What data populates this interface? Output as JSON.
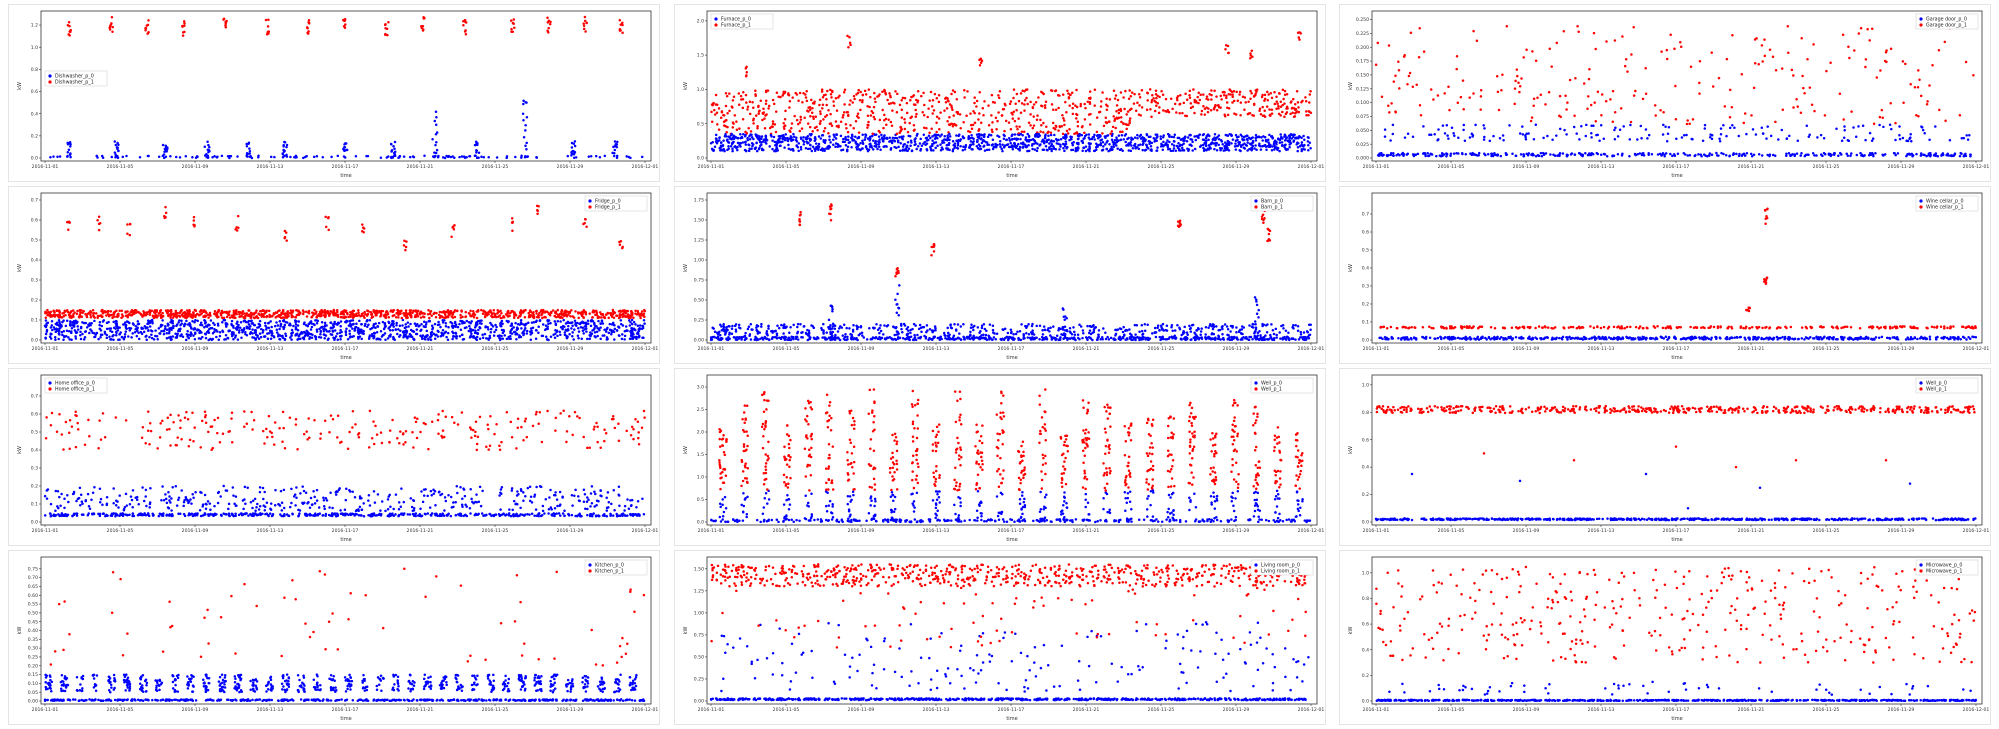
{
  "colors": {
    "series0": "#0000ff",
    "series1": "#ff0000",
    "axis": "#333333"
  },
  "chart_data": [
    {
      "type": "scatter",
      "ylabel": "kW",
      "xlabel": "time",
      "legend": "left",
      "series": [
        {
          "name": "Dishwasher_p_0"
        },
        {
          "name": "Dishwasher_p_1"
        }
      ],
      "ylim": [
        0,
        1.3
      ],
      "yticks": [
        "0.0",
        "0.2",
        "0.4",
        "0.6",
        "0.8",
        "1.0",
        "1.2"
      ],
      "xticks": [
        "2016-11-01",
        "2016-11-05",
        "2016-11-09",
        "2016-11-13",
        "2016-11-17",
        "2016-11-21",
        "2016-11-25",
        "2016-11-29",
        "2016-12-01"
      ],
      "profile": {
        "base0": 0.01,
        "jit0": 0.01,
        "n0": 120,
        "clusters0": [
          [
            0.04,
            0.15
          ],
          [
            0.12,
            0.15
          ],
          [
            0.2,
            0.12
          ],
          [
            0.27,
            0.15
          ],
          [
            0.34,
            0.15
          ],
          [
            0.4,
            0.15
          ],
          [
            0.5,
            0.15
          ],
          [
            0.58,
            0.15
          ],
          [
            0.65,
            0.45
          ],
          [
            0.72,
            0.15
          ],
          [
            0.8,
            0.6
          ],
          [
            0.88,
            0.15
          ],
          [
            0.95,
            0.15
          ]
        ],
        "clusters1": [
          [
            0.04,
            1.25
          ],
          [
            0.11,
            1.28
          ],
          [
            0.17,
            1.25
          ],
          [
            0.23,
            1.25
          ],
          [
            0.3,
            1.27
          ],
          [
            0.37,
            1.25
          ],
          [
            0.44,
            1.25
          ],
          [
            0.5,
            1.28
          ],
          [
            0.57,
            1.25
          ],
          [
            0.63,
            1.28
          ],
          [
            0.7,
            1.25
          ],
          [
            0.78,
            1.25
          ],
          [
            0.84,
            1.27
          ],
          [
            0.9,
            1.28
          ],
          [
            0.96,
            1.25
          ]
        ]
      }
    },
    {
      "type": "scatter",
      "ylabel": "kW",
      "xlabel": "time",
      "legend": "top-left",
      "series": [
        {
          "name": "Furnace_p_0"
        },
        {
          "name": "Furnace_p_1"
        }
      ],
      "ylim": [
        0,
        2.1
      ],
      "yticks": [
        "0.0",
        "0.5",
        "1.0",
        "1.5",
        "2.0"
      ],
      "xticks": [
        "2016-11-01",
        "2016-11-05",
        "2016-11-09",
        "2016-11-13",
        "2016-11-17",
        "2016-11-21",
        "2016-11-25",
        "2016-11-29",
        "2016-12-01"
      ],
      "profile": {
        "band0": [
          0.1,
          0.35
        ],
        "n0": 900,
        "band1": [
          0.35,
          1.0
        ],
        "n1": 900,
        "band1b": [
          0.6,
          1.0
        ],
        "split": 0.7,
        "spikes1": [
          [
            0.06,
            1.35
          ],
          [
            0.23,
            1.8
          ],
          [
            0.45,
            1.5
          ],
          [
            0.86,
            1.65
          ],
          [
            0.9,
            1.6
          ],
          [
            0.98,
            1.95
          ]
        ]
      }
    },
    {
      "type": "scatter",
      "ylabel": "kW",
      "xlabel": "time",
      "legend": "top-right",
      "series": [
        {
          "name": "Garage door_p_0"
        },
        {
          "name": "Garage door_p_1"
        }
      ],
      "ylim": [
        0,
        0.26
      ],
      "yticks": [
        "0.000",
        "0.025",
        "0.050",
        "0.075",
        "0.100",
        "0.125",
        "0.150",
        "0.175",
        "0.200",
        "0.225",
        "0.250"
      ],
      "xticks": [
        "2016-11-01",
        "2016-11-05",
        "2016-11-09",
        "2016-11-13",
        "2016-11-17",
        "2016-11-21",
        "2016-11-25",
        "2016-11-29",
        "2016-12-01"
      ],
      "profile": {
        "base0": 0.006,
        "jit0": 0.003,
        "n0": 350,
        "low1": [
          0.05,
          0.06
        ],
        "scatter1": [
          0.06,
          0.24
        ],
        "n1": 240,
        "lowpts": [
          0.03,
          0.045
        ],
        "nlow": 120
      }
    },
    {
      "type": "scatter",
      "ylabel": "kW",
      "xlabel": "time",
      "legend": "top-right",
      "series": [
        {
          "name": "Fridge_p_0"
        },
        {
          "name": "Fridge_p_1"
        }
      ],
      "ylim": [
        0,
        0.72
      ],
      "yticks": [
        "0.0",
        "0.1",
        "0.2",
        "0.3",
        "0.4",
        "0.5",
        "0.6",
        "0.7"
      ],
      "xticks": [
        "2016-11-01",
        "2016-11-05",
        "2016-11-09",
        "2016-11-13",
        "2016-11-17",
        "2016-11-21",
        "2016-11-25",
        "2016-11-29",
        "2016-12-01"
      ],
      "profile": {
        "band0": [
          0.0,
          0.1
        ],
        "n0": 900,
        "band1": [
          0.11,
          0.15
        ],
        "n1": 1100,
        "spikes1": [
          [
            0.04,
            0.62
          ],
          [
            0.09,
            0.62
          ],
          [
            0.14,
            0.58
          ],
          [
            0.2,
            0.68
          ],
          [
            0.25,
            0.62
          ],
          [
            0.32,
            0.62
          ],
          [
            0.4,
            0.55
          ],
          [
            0.47,
            0.62
          ],
          [
            0.53,
            0.6
          ],
          [
            0.6,
            0.5
          ],
          [
            0.68,
            0.58
          ],
          [
            0.78,
            0.62
          ],
          [
            0.82,
            0.68
          ],
          [
            0.9,
            0.62
          ],
          [
            0.96,
            0.5
          ]
        ]
      }
    },
    {
      "type": "scatter",
      "ylabel": "kW",
      "xlabel": "time",
      "legend": "top-right",
      "series": [
        {
          "name": "Barn_p_0"
        },
        {
          "name": "Barn_p_1"
        }
      ],
      "ylim": [
        0,
        1.8
      ],
      "yticks": [
        "0.00",
        "0.25",
        "0.50",
        "0.75",
        "1.00",
        "1.25",
        "1.50",
        "1.75"
      ],
      "xticks": [
        "2016-11-01",
        "2016-11-05",
        "2016-11-09",
        "2016-11-13",
        "2016-11-17",
        "2016-11-21",
        "2016-11-25",
        "2016-11-29",
        "2016-12-01"
      ],
      "profile": {
        "base0": 0.02,
        "jit0": 0.02,
        "n0": 600,
        "mid0": [
          0.05,
          0.2
        ],
        "nmid": 500,
        "clusters0": [
          [
            0.2,
            0.45
          ],
          [
            0.31,
            0.7
          ],
          [
            0.59,
            0.4
          ],
          [
            0.91,
            0.55
          ]
        ],
        "clusters1": [
          [
            0.15,
            1.6
          ],
          [
            0.2,
            1.7
          ],
          [
            0.31,
            0.9
          ],
          [
            0.37,
            1.2
          ],
          [
            0.78,
            1.6
          ],
          [
            0.92,
            1.65
          ],
          [
            0.93,
            1.4
          ]
        ]
      }
    },
    {
      "type": "scatter",
      "ylabel": "kW",
      "xlabel": "time",
      "legend": "top-right",
      "series": [
        {
          "name": "Wine cellar_p_0"
        },
        {
          "name": "Wine cellar_p_1"
        }
      ],
      "ylim": [
        0,
        0.8
      ],
      "yticks": [
        "0.0",
        "0.1",
        "0.2",
        "0.3",
        "0.4",
        "0.5",
        "0.6",
        "0.7"
      ],
      "xticks": [
        "2016-11-01",
        "2016-11-05",
        "2016-11-09",
        "2016-11-13",
        "2016-11-17",
        "2016-11-21",
        "2016-11-25",
        "2016-11-29",
        "2016-12-01"
      ],
      "profile": {
        "base0": 0.01,
        "jit0": 0.008,
        "n0": 500,
        "row1": 0.07,
        "n1": 260,
        "clusters1": [
          [
            0.65,
            0.73
          ],
          [
            0.65,
            0.35
          ],
          [
            0.62,
            0.18
          ]
        ]
      }
    },
    {
      "type": "scatter",
      "ylabel": "kW",
      "xlabel": "time",
      "legend": "top-left",
      "series": [
        {
          "name": "Home office_p_0"
        },
        {
          "name": "Home office_p_1"
        }
      ],
      "ylim": [
        0,
        0.8
      ],
      "yticks": [
        "0.0",
        "0.1",
        "0.2",
        "0.3",
        "0.4",
        "0.5",
        "0.6",
        "0.7"
      ],
      "xticks": [
        "2016-11-01",
        "2016-11-05",
        "2016-11-09",
        "2016-11-13",
        "2016-11-17",
        "2016-11-21",
        "2016-11-25",
        "2016-11-29",
        "2016-12-01"
      ],
      "profile": {
        "base0": 0.04,
        "jit0": 0.008,
        "n0": 500,
        "mid0": [
          0.06,
          0.2
        ],
        "nmid": 420,
        "band1": [
          0.4,
          0.62
        ],
        "n1": 260
      }
    },
    {
      "type": "scatter",
      "ylabel": "kW",
      "xlabel": "time",
      "legend": "top-right",
      "series": [
        {
          "name": "Well_p_0"
        },
        {
          "name": "Well_p_1"
        }
      ],
      "ylim": [
        0,
        3.2
      ],
      "yticks": [
        "0.0",
        "0.5",
        "1.0",
        "1.5",
        "2.0",
        "2.5",
        "3.0"
      ],
      "xticks": [
        "2016-11-01",
        "2016-11-05",
        "2016-11-09",
        "2016-11-13",
        "2016-11-17",
        "2016-11-21",
        "2016-11-25",
        "2016-11-29",
        "2016-12-01"
      ],
      "profile": {
        "spikes": 28,
        "low0": [
          0.0,
          0.7
        ],
        "high1": [
          0.7,
          3.0
        ]
      }
    },
    {
      "type": "scatter",
      "ylabel": "kW",
      "xlabel": "time",
      "legend": "top-right",
      "series": [
        {
          "name": "Well_p_0"
        },
        {
          "name": "Well_p_1"
        }
      ],
      "ylim": [
        0,
        1.05
      ],
      "yticks": [
        "0.0",
        "0.2",
        "0.4",
        "0.6",
        "0.8",
        "1.0"
      ],
      "xticks": [
        "2016-11-01",
        "2016-11-05",
        "2016-11-09",
        "2016-11-13",
        "2016-11-17",
        "2016-11-21",
        "2016-11-25",
        "2016-11-29",
        "2016-12-01"
      ],
      "profile": {
        "base0": 0.02,
        "jit0": 0.006,
        "n0": 600,
        "row1": 0.82,
        "jit1": 0.025,
        "n1": 500,
        "sparse1": [
          [
            0.18,
            0.5
          ],
          [
            0.33,
            0.45
          ],
          [
            0.5,
            0.55
          ],
          [
            0.6,
            0.4
          ],
          [
            0.7,
            0.45
          ],
          [
            0.85,
            0.45
          ]
        ],
        "sparse0": [
          [
            0.06,
            0.35
          ],
          [
            0.24,
            0.3
          ],
          [
            0.45,
            0.35
          ],
          [
            0.52,
            0.1
          ],
          [
            0.64,
            0.25
          ],
          [
            0.89,
            0.28
          ]
        ]
      }
    },
    {
      "type": "scatter",
      "ylabel": "kW",
      "xlabel": "time",
      "legend": "top-right",
      "series": [
        {
          "name": "Kitchen_p_0"
        },
        {
          "name": "Kitchen_p_1"
        }
      ],
      "ylim": [
        0,
        0.8
      ],
      "yticks": [
        "0.00",
        "0.05",
        "0.10",
        "0.15",
        "0.20",
        "0.25",
        "0.30",
        "0.35",
        "0.40",
        "0.45",
        "0.50",
        "0.55",
        "0.60",
        "0.65",
        "0.70",
        "0.75"
      ],
      "xticks": [
        "2016-11-01",
        "2016-11-05",
        "2016-11-09",
        "2016-11-13",
        "2016-11-17",
        "2016-11-21",
        "2016-11-25",
        "2016-11-29",
        "2016-12-01"
      ],
      "profile": {
        "base0": 0.005,
        "jit0": 0.004,
        "n0": 500,
        "band0": [
          0.05,
          0.15
        ],
        "nmid": 700,
        "scatter1": [
          0.2,
          0.78
        ],
        "n1": 70
      }
    },
    {
      "type": "scatter",
      "ylabel": "kW",
      "xlabel": "time",
      "legend": "top-right",
      "series": [
        {
          "name": "Living room_p_0"
        },
        {
          "name": "Living room_p_1"
        }
      ],
      "ylim": [
        0,
        1.6
      ],
      "yticks": [
        "0.00",
        "0.25",
        "0.50",
        "0.75",
        "1.00",
        "1.25",
        "1.50"
      ],
      "xticks": [
        "2016-11-01",
        "2016-11-05",
        "2016-11-09",
        "2016-11-13",
        "2016-11-17",
        "2016-11-21",
        "2016-11-25",
        "2016-11-29",
        "2016-12-01"
      ],
      "profile": {
        "base0": 0.02,
        "jit0": 0.01,
        "n0": 600,
        "mid0": [
          0.1,
          0.9
        ],
        "nmid": 180,
        "band1": [
          1.3,
          1.55
        ],
        "n1": 700,
        "scatter1": [
          0.6,
          1.3
        ],
        "ns1": 80
      }
    },
    {
      "type": "scatter",
      "ylabel": "kW",
      "xlabel": "time",
      "legend": "top-right",
      "series": [
        {
          "name": "Microwave_p_0"
        },
        {
          "name": "Microwave_p_1"
        }
      ],
      "ylim": [
        0,
        1.1
      ],
      "yticks": [
        "0.0",
        "0.2",
        "0.4",
        "0.6",
        "0.8",
        "1.0"
      ],
      "xticks": [
        "2016-11-01",
        "2016-11-05",
        "2016-11-09",
        "2016-11-13",
        "2016-11-17",
        "2016-11-21",
        "2016-11-25",
        "2016-11-29",
        "2016-12-01"
      ],
      "profile": {
        "base0": 0.005,
        "jit0": 0.004,
        "n0": 600,
        "scatter0": [
          0.05,
          0.15
        ],
        "ns0": 60,
        "scatter1": [
          0.3,
          1.05
        ],
        "n1": 380
      }
    }
  ]
}
